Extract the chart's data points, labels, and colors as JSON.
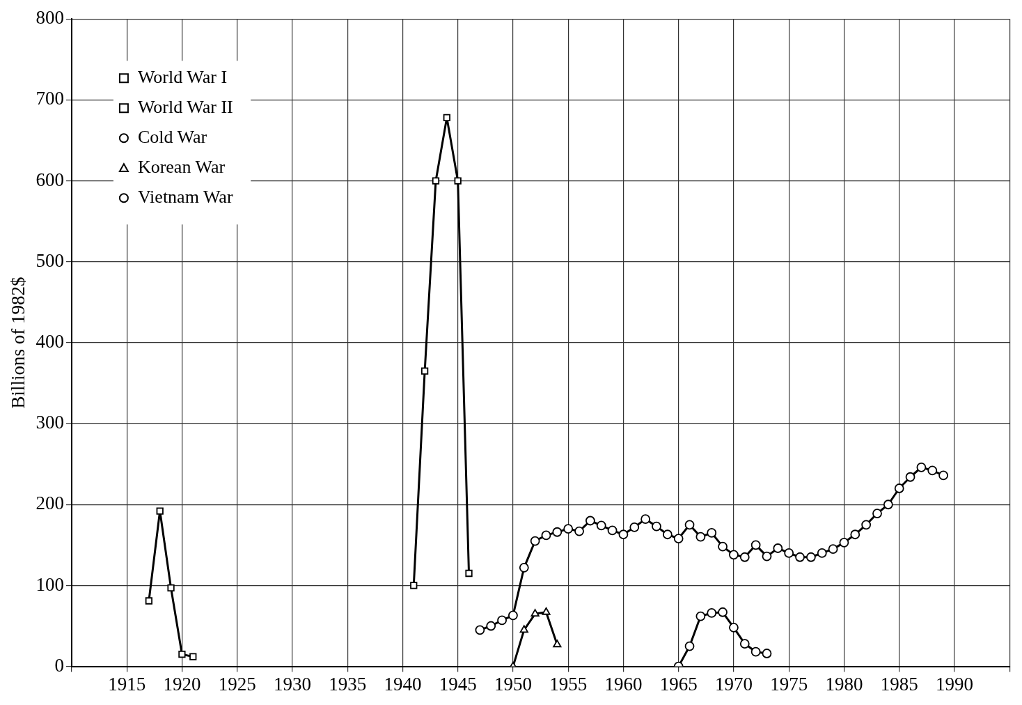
{
  "chart_data": {
    "type": "line",
    "ylabel": "Billions of 1982$",
    "xlim": [
      1910,
      1995
    ],
    "xticks": [
      {
        "value": 1910,
        "label": null
      },
      1915,
      1920,
      1925,
      1930,
      1935,
      1940,
      1945,
      1950,
      1955,
      1960,
      1965,
      1970,
      1975,
      1980,
      1985,
      1990,
      {
        "value": 1995,
        "label": null
      }
    ],
    "ylim": [
      0,
      800
    ],
    "yticks": [
      0,
      100,
      200,
      300,
      400,
      500,
      600,
      700,
      800
    ],
    "grid": true,
    "legend": "top left",
    "line_style": "solid",
    "series": [
      {
        "name": "World War I",
        "color": "#000000",
        "marker": "square",
        "x": [
          1917,
          1918,
          1919,
          1920,
          1921
        ],
        "values": [
          81,
          192,
          97,
          15,
          12
        ]
      },
      {
        "name": "World War II",
        "color": "#000000",
        "marker": "square",
        "x": [
          1941,
          1942,
          1943,
          1944,
          1945,
          1946
        ],
        "values": [
          100,
          365,
          600,
          678,
          600,
          115
        ]
      },
      {
        "name": "Cold War",
        "color": "#000000",
        "marker": "circle",
        "x": [
          1947,
          1948,
          1949,
          1950,
          1951,
          1952,
          1953,
          1954,
          1955,
          1956,
          1957,
          1958,
          1959,
          1960,
          1961,
          1962,
          1963,
          1964,
          1965,
          1966,
          1967,
          1968,
          1969,
          1970,
          1971,
          1972,
          1973,
          1974,
          1975,
          1976,
          1977,
          1978,
          1979,
          1980,
          1981,
          1982,
          1983,
          1984,
          1985,
          1986,
          1987,
          1988,
          1989
        ],
        "values": [
          45,
          50,
          57,
          63,
          122,
          155,
          162,
          166,
          170,
          167,
          180,
          174,
          168,
          163,
          172,
          182,
          173,
          163,
          158,
          175,
          160,
          165,
          148,
          138,
          135,
          150,
          136,
          146,
          140,
          135,
          135,
          140,
          145,
          153,
          163,
          175,
          189,
          200,
          220,
          234,
          246,
          242,
          236
        ]
      },
      {
        "name": "Korean War",
        "color": "#000000",
        "marker": "triangle",
        "x": [
          1950,
          1951,
          1952,
          1953,
          1954
        ],
        "values": [
          0,
          45,
          65,
          67,
          27
        ]
      },
      {
        "name": "Vietnam War",
        "color": "#000000",
        "marker": "circle",
        "x": [
          1965,
          1966,
          1967,
          1968,
          1969,
          1970,
          1971,
          1972,
          1973
        ],
        "values": [
          0,
          25,
          62,
          66,
          67,
          48,
          28,
          18,
          16
        ]
      }
    ]
  }
}
